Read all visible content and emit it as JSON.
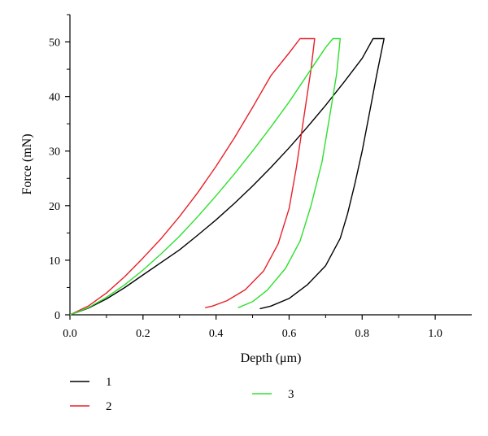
{
  "chart_data": {
    "type": "line",
    "xlabel": "Depth (μm)",
    "ylabel": "Force (mN)",
    "xlim": [
      0.0,
      1.1
    ],
    "ylim": [
      0,
      55
    ],
    "xticks": [
      0.0,
      0.2,
      0.4,
      0.6,
      0.8,
      1.0
    ],
    "xtick_labels": [
      "0.0",
      "0.2",
      "0.4",
      "0.6",
      "0.8",
      "1.0"
    ],
    "yticks": [
      0,
      10,
      20,
      30,
      40,
      50
    ],
    "ytick_labels": [
      "0",
      "10",
      "20",
      "30",
      "40",
      "50"
    ],
    "grid": false,
    "legend_position": "bottom",
    "series": [
      {
        "name": "1",
        "color": "#000000",
        "points": [
          [
            0.0,
            0.0
          ],
          [
            0.05,
            1.2
          ],
          [
            0.1,
            2.9
          ],
          [
            0.15,
            5.0
          ],
          [
            0.2,
            7.3
          ],
          [
            0.25,
            9.6
          ],
          [
            0.3,
            11.9
          ],
          [
            0.35,
            14.6
          ],
          [
            0.4,
            17.4
          ],
          [
            0.45,
            20.4
          ],
          [
            0.5,
            23.6
          ],
          [
            0.55,
            27.0
          ],
          [
            0.6,
            30.6
          ],
          [
            0.65,
            34.4
          ],
          [
            0.7,
            38.4
          ],
          [
            0.75,
            42.6
          ],
          [
            0.8,
            47.0
          ],
          [
            0.83,
            50.6
          ],
          [
            0.86,
            50.6
          ],
          [
            0.84,
            44.0
          ],
          [
            0.82,
            37.0
          ],
          [
            0.8,
            30.0
          ],
          [
            0.78,
            24.0
          ],
          [
            0.76,
            18.5
          ],
          [
            0.74,
            14.0
          ],
          [
            0.7,
            9.0
          ],
          [
            0.65,
            5.5
          ],
          [
            0.6,
            3.0
          ],
          [
            0.55,
            1.6
          ],
          [
            0.52,
            1.1
          ]
        ]
      },
      {
        "name": "2",
        "color": "#e8202a",
        "points": [
          [
            0.0,
            0.0
          ],
          [
            0.05,
            1.6
          ],
          [
            0.1,
            4.0
          ],
          [
            0.15,
            7.0
          ],
          [
            0.2,
            10.4
          ],
          [
            0.25,
            14.0
          ],
          [
            0.3,
            18.0
          ],
          [
            0.35,
            22.4
          ],
          [
            0.4,
            27.2
          ],
          [
            0.45,
            32.4
          ],
          [
            0.5,
            38.0
          ],
          [
            0.55,
            43.8
          ],
          [
            0.6,
            48.0
          ],
          [
            0.63,
            50.6
          ],
          [
            0.67,
            50.6
          ],
          [
            0.66,
            45.0
          ],
          [
            0.64,
            36.0
          ],
          [
            0.62,
            27.0
          ],
          [
            0.6,
            19.5
          ],
          [
            0.57,
            13.0
          ],
          [
            0.53,
            8.0
          ],
          [
            0.48,
            4.6
          ],
          [
            0.43,
            2.6
          ],
          [
            0.39,
            1.6
          ],
          [
            0.37,
            1.3
          ]
        ]
      },
      {
        "name": "3",
        "color": "#2ee02e",
        "points": [
          [
            0.0,
            0.0
          ],
          [
            0.05,
            1.3
          ],
          [
            0.1,
            3.2
          ],
          [
            0.15,
            5.5
          ],
          [
            0.2,
            8.2
          ],
          [
            0.25,
            11.2
          ],
          [
            0.3,
            14.4
          ],
          [
            0.35,
            18.0
          ],
          [
            0.4,
            21.8
          ],
          [
            0.45,
            25.8
          ],
          [
            0.5,
            30.0
          ],
          [
            0.55,
            34.4
          ],
          [
            0.6,
            39.0
          ],
          [
            0.65,
            44.0
          ],
          [
            0.7,
            49.0
          ],
          [
            0.72,
            50.6
          ],
          [
            0.74,
            50.6
          ],
          [
            0.73,
            44.0
          ],
          [
            0.71,
            36.0
          ],
          [
            0.69,
            28.0
          ],
          [
            0.66,
            20.0
          ],
          [
            0.63,
            13.5
          ],
          [
            0.59,
            8.5
          ],
          [
            0.54,
            4.5
          ],
          [
            0.5,
            2.4
          ],
          [
            0.46,
            1.3
          ]
        ]
      }
    ]
  }
}
